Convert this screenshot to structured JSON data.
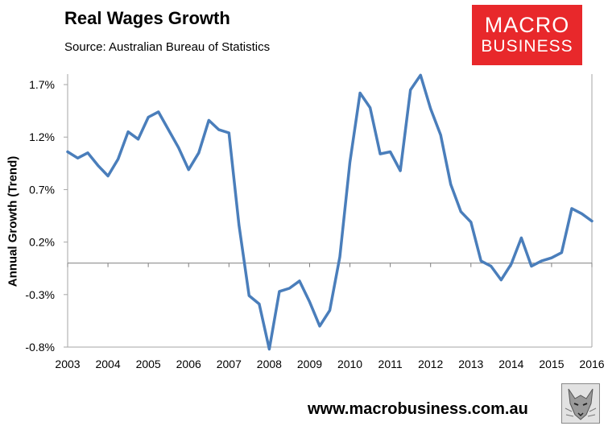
{
  "header": {
    "title": "Real Wages Growth",
    "source": "Source: Australian Bureau of Statistics"
  },
  "logo": {
    "line1": "MACRO",
    "line2": "BUSINESS",
    "color": "#e8282b"
  },
  "footer": {
    "url": "www.macrobusiness.com.au",
    "mascot_icon": "wolf-icon"
  },
  "chart_data": {
    "type": "line",
    "title": "Real Wages Growth",
    "xlabel": "",
    "ylabel": "Annual Growth (Trend)",
    "xlim": [
      2003,
      2016
    ],
    "ylim": [
      -0.8,
      1.8
    ],
    "grid": false,
    "line_color": "#4a7ebb",
    "yticks": [
      "1.7%",
      "1.2%",
      "0.7%",
      "0.2%",
      "-0.3%",
      "-0.8%"
    ],
    "ytick_values": [
      1.7,
      1.2,
      0.7,
      0.2,
      -0.3,
      -0.8
    ],
    "xticks": [
      "2003",
      "2004",
      "2005",
      "2006",
      "2007",
      "2008",
      "2009",
      "2010",
      "2011",
      "2012",
      "2013",
      "2014",
      "2015",
      "2016"
    ],
    "xtick_values": [
      2003,
      2004,
      2005,
      2006,
      2007,
      2008,
      2009,
      2010,
      2011,
      2012,
      2013,
      2014,
      2015,
      2016
    ],
    "series": [
      {
        "name": "Real Wages Growth",
        "x": [
          2003.0,
          2003.25,
          2003.5,
          2003.75,
          2004.0,
          2004.25,
          2004.5,
          2004.75,
          2005.0,
          2005.25,
          2005.5,
          2005.75,
          2006.0,
          2006.25,
          2006.5,
          2006.75,
          2007.0,
          2007.25,
          2007.5,
          2007.75,
          2008.0,
          2008.25,
          2008.5,
          2008.75,
          2009.0,
          2009.25,
          2009.5,
          2009.75,
          2010.0,
          2010.25,
          2010.5,
          2010.75,
          2011.0,
          2011.25,
          2011.5,
          2011.75,
          2012.0,
          2012.25,
          2012.5,
          2012.75,
          2013.0,
          2013.25,
          2013.5,
          2013.75,
          2014.0,
          2014.25,
          2014.5,
          2014.75,
          2015.0,
          2015.25,
          2015.5,
          2015.75,
          2016.0
        ],
        "values": [
          1.06,
          1.0,
          1.05,
          0.93,
          0.83,
          0.99,
          1.25,
          1.18,
          1.39,
          1.44,
          1.27,
          1.1,
          0.89,
          1.05,
          1.36,
          1.27,
          1.24,
          0.36,
          -0.31,
          -0.39,
          -0.82,
          -0.27,
          -0.24,
          -0.17,
          -0.37,
          -0.6,
          -0.45,
          0.06,
          0.96,
          1.62,
          1.48,
          1.04,
          1.06,
          0.88,
          1.65,
          1.79,
          1.47,
          1.22,
          0.75,
          0.49,
          0.39,
          0.02,
          -0.03,
          -0.16,
          -0.01,
          0.24,
          -0.03,
          0.02,
          0.05,
          0.1,
          0.52,
          0.47,
          0.4
        ]
      }
    ]
  }
}
